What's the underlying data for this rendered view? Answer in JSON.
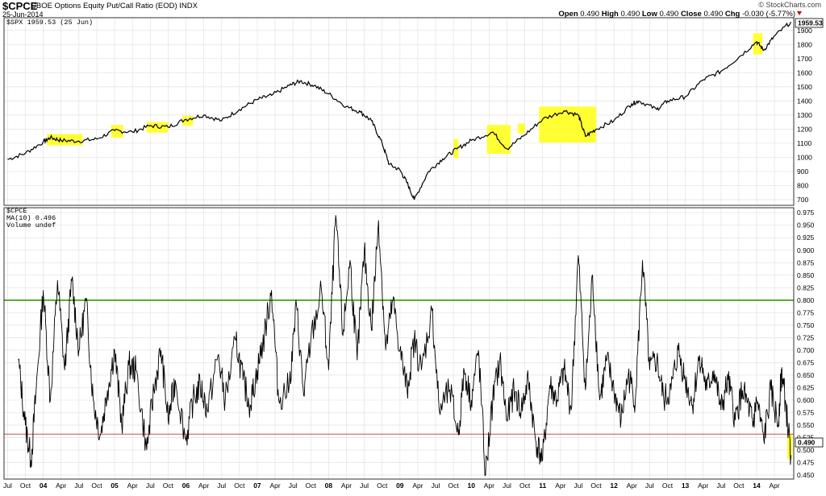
{
  "header": {
    "symbol": "$CPCE",
    "description": "CBOE Options Equity Put/Call Ratio (EOD)",
    "exchange": "INDX",
    "date": "25-Jun-2014",
    "source": "© StockCharts.com",
    "open_label": "Open",
    "open": "0.490",
    "high_label": "High",
    "high": "0.490",
    "low_label": "Low",
    "low": "0.490",
    "close_label": "Close",
    "close": "0.490",
    "chg_label": "Chg",
    "chg": "-0.030 (-5.77%)"
  },
  "colors": {
    "highlight": "#ffff33",
    "green_line": "#339900",
    "red_line": "#cc3333",
    "series": "#000000"
  },
  "chart_data": [
    {
      "type": "line",
      "legend": "$SPX 1959.53 (25 Jun)",
      "last_value_label": "1959.53",
      "ylim": [
        660,
        1990
      ],
      "y_ticks": [
        700,
        800,
        900,
        1000,
        1100,
        1200,
        1300,
        1400,
        1500,
        1600,
        1700,
        1800,
        1900
      ],
      "x": [
        2003.5,
        2003.75,
        2004.0,
        2004.1,
        2004.25,
        2004.5,
        2004.75,
        2005.0,
        2005.25,
        2005.5,
        2005.75,
        2006.0,
        2006.25,
        2006.5,
        2006.75,
        2007.0,
        2007.2,
        2007.45,
        2007.6,
        2007.8,
        2008.0,
        2008.25,
        2008.45,
        2008.6,
        2008.75,
        2008.85,
        2009.0,
        2009.1,
        2009.2,
        2009.4,
        2009.6,
        2009.8,
        2010.0,
        2010.3,
        2010.5,
        2010.75,
        2011.0,
        2011.3,
        2011.5,
        2011.6,
        2011.75,
        2012.0,
        2012.25,
        2012.35,
        2012.6,
        2012.75,
        2013.0,
        2013.25,
        2013.5,
        2013.75,
        2014.0,
        2014.1,
        2014.25,
        2014.48
      ],
      "values": [
        985,
        1030,
        1110,
        1140,
        1120,
        1115,
        1130,
        1190,
        1180,
        1225,
        1215,
        1270,
        1300,
        1260,
        1340,
        1410,
        1440,
        1510,
        1540,
        1510,
        1450,
        1360,
        1320,
        1260,
        1100,
        950,
        910,
        820,
        700,
        900,
        990,
        1060,
        1120,
        1180,
        1060,
        1160,
        1270,
        1330,
        1300,
        1150,
        1200,
        1260,
        1380,
        1400,
        1340,
        1400,
        1430,
        1550,
        1610,
        1710,
        1820,
        1760,
        1860,
        1959.53
      ],
      "highlights": [
        {
          "x": [
            2004.05,
            2004.55
          ],
          "y": [
            1085,
            1165
          ]
        },
        {
          "x": [
            2004.95,
            2005.12
          ],
          "y": [
            1140,
            1230
          ]
        },
        {
          "x": [
            2005.45,
            2005.75
          ],
          "y": [
            1175,
            1250
          ]
        },
        {
          "x": [
            2005.95,
            2006.1
          ],
          "y": [
            1225,
            1295
          ]
        },
        {
          "x": [
            2009.75,
            2009.82
          ],
          "y": [
            995,
            1130
          ]
        },
        {
          "x": [
            2010.22,
            2010.55
          ],
          "y": [
            1025,
            1230
          ]
        },
        {
          "x": [
            2010.65,
            2010.75
          ],
          "y": [
            1170,
            1240
          ]
        },
        {
          "x": [
            2010.95,
            2011.75
          ],
          "y": [
            1105,
            1360
          ]
        },
        {
          "x": [
            2013.95,
            2014.08
          ],
          "y": [
            1730,
            1880
          ]
        }
      ]
    },
    {
      "type": "line",
      "legend": [
        "$CPCE",
        "MA(10) 0.496",
        "Volume undef"
      ],
      "last_value_label": "0.490",
      "ylim": [
        0.442,
        0.985
      ],
      "y_ticks": [
        0.45,
        0.475,
        0.5,
        0.525,
        0.55,
        0.575,
        0.6,
        0.625,
        0.65,
        0.675,
        0.7,
        0.725,
        0.75,
        0.775,
        0.8,
        0.825,
        0.85,
        0.875,
        0.9,
        0.925,
        0.95,
        0.975
      ],
      "y_tick_labels": [
        "0.450",
        "0.475",
        "0.500",
        "0.525",
        "0.550",
        "0.575",
        "0.600",
        "0.625",
        "0.650",
        "0.675",
        "0.700",
        "0.725",
        "0.750",
        "0.775",
        "0.800",
        "0.825",
        "0.850",
        "0.875",
        "0.900",
        "0.925",
        "0.950",
        "0.975"
      ],
      "green_line": 0.8,
      "red_line": 0.532,
      "x": [
        2003.65,
        2003.75,
        2003.83,
        2003.9,
        2004.0,
        2004.1,
        2004.2,
        2004.3,
        2004.4,
        2004.5,
        2004.6,
        2004.7,
        2004.8,
        2004.9,
        2005.0,
        2005.1,
        2005.2,
        2005.3,
        2005.45,
        2005.55,
        2005.65,
        2005.75,
        2005.85,
        2006.0,
        2006.1,
        2006.2,
        2006.3,
        2006.45,
        2006.55,
        2006.7,
        2006.8,
        2006.9,
        2007.0,
        2007.1,
        2007.2,
        2007.3,
        2007.45,
        2007.55,
        2007.65,
        2007.75,
        2007.9,
        2008.0,
        2008.1,
        2008.2,
        2008.3,
        2008.4,
        2008.5,
        2008.6,
        2008.7,
        2008.8,
        2008.9,
        2009.0,
        2009.1,
        2009.2,
        2009.3,
        2009.45,
        2009.55,
        2009.7,
        2009.82,
        2009.9,
        2010.0,
        2010.1,
        2010.2,
        2010.3,
        2010.4,
        2010.5,
        2010.6,
        2010.7,
        2010.8,
        2010.9,
        2011.0,
        2011.1,
        2011.2,
        2011.3,
        2011.4,
        2011.5,
        2011.6,
        2011.7,
        2011.8,
        2011.9,
        2012.0,
        2012.1,
        2012.2,
        2012.3,
        2012.4,
        2012.5,
        2012.6,
        2012.7,
        2012.8,
        2012.9,
        2013.0,
        2013.1,
        2013.2,
        2013.3,
        2013.4,
        2013.5,
        2013.6,
        2013.7,
        2013.8,
        2013.9,
        2013.95,
        2014.0,
        2014.1,
        2014.2,
        2014.3,
        2014.35,
        2014.4,
        2014.48
      ],
      "values": [
        0.68,
        0.55,
        0.48,
        0.62,
        0.82,
        0.6,
        0.84,
        0.66,
        0.84,
        0.7,
        0.8,
        0.6,
        0.53,
        0.62,
        0.7,
        0.55,
        0.67,
        0.66,
        0.5,
        0.62,
        0.7,
        0.56,
        0.64,
        0.52,
        0.6,
        0.63,
        0.58,
        0.69,
        0.6,
        0.72,
        0.64,
        0.59,
        0.66,
        0.73,
        0.82,
        0.6,
        0.63,
        0.79,
        0.61,
        0.72,
        0.82,
        0.66,
        0.97,
        0.73,
        0.88,
        0.68,
        0.9,
        0.74,
        0.96,
        0.7,
        0.8,
        0.7,
        0.62,
        0.72,
        0.66,
        0.78,
        0.58,
        0.62,
        0.53,
        0.66,
        0.6,
        0.7,
        0.45,
        0.6,
        0.68,
        0.56,
        0.62,
        0.58,
        0.64,
        0.52,
        0.48,
        0.63,
        0.6,
        0.66,
        0.58,
        0.89,
        0.62,
        0.85,
        0.6,
        0.68,
        0.62,
        0.56,
        0.65,
        0.6,
        0.88,
        0.66,
        0.68,
        0.6,
        0.62,
        0.7,
        0.64,
        0.59,
        0.69,
        0.62,
        0.66,
        0.58,
        0.64,
        0.56,
        0.62,
        0.58,
        0.55,
        0.6,
        0.52,
        0.62,
        0.55,
        0.66,
        0.6,
        0.49
      ],
      "highlights": [
        {
          "x": [
            2014.43,
            2014.5
          ],
          "y": [
            0.482,
            0.532
          ]
        }
      ]
    }
  ],
  "x_axis": {
    "ticks": [
      {
        "x": 2003.5,
        "label": "Jul"
      },
      {
        "x": 2003.75,
        "label": "Oct"
      },
      {
        "x": 2004.0,
        "label": "04"
      },
      {
        "x": 2004.25,
        "label": "Apr"
      },
      {
        "x": 2004.5,
        "label": "Jul"
      },
      {
        "x": 2004.75,
        "label": "Oct"
      },
      {
        "x": 2005.0,
        "label": "05"
      },
      {
        "x": 2005.25,
        "label": "Apr"
      },
      {
        "x": 2005.5,
        "label": "Jul"
      },
      {
        "x": 2005.75,
        "label": "Oct"
      },
      {
        "x": 2006.0,
        "label": "06"
      },
      {
        "x": 2006.25,
        "label": "Apr"
      },
      {
        "x": 2006.5,
        "label": "Jul"
      },
      {
        "x": 2006.75,
        "label": "Oct"
      },
      {
        "x": 2007.0,
        "label": "07"
      },
      {
        "x": 2007.25,
        "label": "Apr"
      },
      {
        "x": 2007.5,
        "label": "Jul"
      },
      {
        "x": 2007.75,
        "label": "Oct"
      },
      {
        "x": 2008.0,
        "label": "08"
      },
      {
        "x": 2008.25,
        "label": "Apr"
      },
      {
        "x": 2008.5,
        "label": "Jul"
      },
      {
        "x": 2008.75,
        "label": "Oct"
      },
      {
        "x": 2009.0,
        "label": "09"
      },
      {
        "x": 2009.25,
        "label": "Apr"
      },
      {
        "x": 2009.5,
        "label": "Jul"
      },
      {
        "x": 2009.75,
        "label": "Oct"
      },
      {
        "x": 2010.0,
        "label": "10"
      },
      {
        "x": 2010.25,
        "label": "Apr"
      },
      {
        "x": 2010.5,
        "label": "Jul"
      },
      {
        "x": 2010.75,
        "label": "Oct"
      },
      {
        "x": 2011.0,
        "label": "11"
      },
      {
        "x": 2011.25,
        "label": "Apr"
      },
      {
        "x": 2011.5,
        "label": "Jul"
      },
      {
        "x": 2011.75,
        "label": "Oct"
      },
      {
        "x": 2012.0,
        "label": "12"
      },
      {
        "x": 2012.25,
        "label": "Apr"
      },
      {
        "x": 2012.5,
        "label": "Jul"
      },
      {
        "x": 2012.75,
        "label": "Oct"
      },
      {
        "x": 2013.0,
        "label": "13"
      },
      {
        "x": 2013.25,
        "label": "Apr"
      },
      {
        "x": 2013.5,
        "label": "Jul"
      },
      {
        "x": 2013.75,
        "label": "Oct"
      },
      {
        "x": 2014.0,
        "label": "14"
      },
      {
        "x": 2014.25,
        "label": "Apr"
      }
    ],
    "range": [
      2003.45,
      2014.52
    ]
  }
}
